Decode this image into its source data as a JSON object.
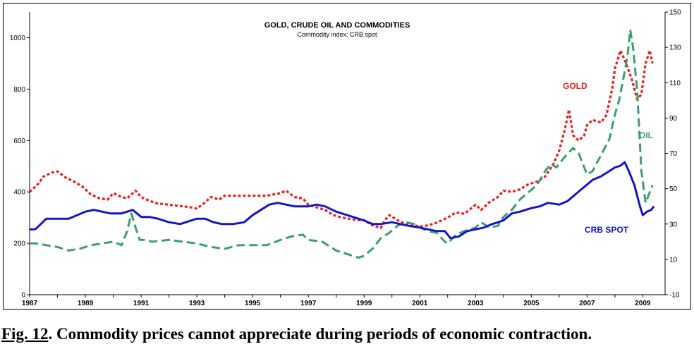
{
  "caption": {
    "label": "Fig. 12",
    "text": ". Commodity prices cannot appreciate during periods of economic contraction."
  },
  "chart_data": {
    "type": "line",
    "title": "GOLD, CRUDE OIL AND COMMODITIES",
    "subtitle": "Commodity index: CRB spot",
    "xlabel": "",
    "ylabel": "",
    "xlim": [
      1987,
      2009.8
    ],
    "ylim": [
      0,
      1100
    ],
    "y2lim": [
      -10,
      150
    ],
    "x_ticks": [
      1987,
      1989,
      1991,
      1993,
      1995,
      1997,
      1999,
      2001,
      2003,
      2005,
      2007,
      2009
    ],
    "y_ticks": [
      0,
      200,
      400,
      600,
      800,
      1000
    ],
    "y2_ticks": [
      -10,
      10,
      30,
      50,
      70,
      90,
      110,
      130,
      150
    ],
    "grid": false,
    "legend": "inline labels",
    "series": [
      {
        "name": "GOLD",
        "axis": "left",
        "color": "#e8201c",
        "style": "dotted",
        "x": [
          1987.0,
          1987.3,
          1987.5,
          1987.8,
          1988.0,
          1988.3,
          1988.6,
          1988.9,
          1989.2,
          1989.5,
          1989.8,
          1990.0,
          1990.3,
          1990.5,
          1990.8,
          1991.0,
          1991.3,
          1991.6,
          1992.0,
          1992.4,
          1992.8,
          1993.0,
          1993.3,
          1993.5,
          1993.8,
          1994.0,
          1994.5,
          1995.0,
          1995.5,
          1996.0,
          1996.2,
          1996.5,
          1996.8,
          1997.0,
          1997.3,
          1997.6,
          1997.9,
          1998.2,
          1998.5,
          1998.8,
          1999.0,
          1999.3,
          1999.6,
          1999.75,
          1999.9,
          2000.2,
          2000.5,
          2000.8,
          2001.0,
          2001.3,
          2001.6,
          2002.0,
          2002.3,
          2002.6,
          2003.0,
          2003.2,
          2003.5,
          2003.8,
          2004.0,
          2004.3,
          2004.6,
          2004.9,
          2005.2,
          2005.5,
          2005.8,
          2006.0,
          2006.2,
          2006.35,
          2006.5,
          2006.7,
          2006.9,
          2007.0,
          2007.2,
          2007.5,
          2007.7,
          2007.9,
          2008.0,
          2008.2,
          2008.4,
          2008.6,
          2008.8,
          2008.95,
          2009.1,
          2009.25,
          2009.35
        ],
        "values": [
          400,
          430,
          460,
          475,
          480,
          455,
          440,
          420,
          390,
          375,
          370,
          395,
          380,
          375,
          405,
          380,
          365,
          355,
          350,
          345,
          340,
          335,
          360,
          380,
          370,
          385,
          385,
          385,
          385,
          395,
          405,
          380,
          375,
          350,
          340,
          330,
          310,
          300,
          295,
          290,
          290,
          270,
          260,
          290,
          310,
          290,
          275,
          270,
          265,
          270,
          280,
          300,
          320,
          315,
          350,
          330,
          360,
          380,
          405,
          400,
          410,
          430,
          440,
          460,
          510,
          560,
          640,
          720,
          620,
          600,
          620,
          660,
          680,
          670,
          700,
          800,
          880,
          950,
          900,
          840,
          760,
          780,
          900,
          950,
          900
        ]
      },
      {
        "name": "OIL",
        "axis": "right",
        "color": "#3aa06a",
        "style": "dashed",
        "x": [
          1987.0,
          1987.3,
          1987.6,
          1988.0,
          1988.4,
          1988.8,
          1989.2,
          1989.6,
          1990.0,
          1990.3,
          1990.5,
          1990.65,
          1990.8,
          1990.95,
          1991.1,
          1991.4,
          1992.0,
          1992.5,
          1993.0,
          1993.5,
          1994.0,
          1994.5,
          1995.0,
          1995.5,
          1996.0,
          1996.4,
          1996.8,
          1997.0,
          1997.5,
          1998.0,
          1998.4,
          1998.8,
          1999.0,
          1999.3,
          1999.6,
          1999.9,
          2000.2,
          2000.5,
          2000.8,
          2001.0,
          2001.3,
          2001.6,
          2001.9,
          2002.0,
          2002.3,
          2002.6,
          2003.0,
          2003.2,
          2003.5,
          2003.8,
          2004.0,
          2004.3,
          2004.6,
          2004.9,
          2005.2,
          2005.5,
          2005.7,
          2005.9,
          2006.2,
          2006.5,
          2006.7,
          2006.9,
          2007.0,
          2007.2,
          2007.4,
          2007.6,
          2007.8,
          2007.9,
          2008.0,
          2008.15,
          2008.3,
          2008.45,
          2008.55,
          2008.65,
          2008.8,
          2008.95,
          2009.1,
          2009.25,
          2009.35
        ],
        "values": [
          19,
          19,
          18,
          17,
          15,
          16,
          18,
          19,
          20,
          18,
          26,
          36,
          28,
          21,
          21,
          20,
          21,
          20,
          19,
          17,
          16,
          18,
          18,
          18,
          21,
          23,
          24,
          21,
          20,
          15,
          13,
          11,
          12,
          16,
          22,
          25,
          29,
          31,
          30,
          28,
          26,
          25,
          20,
          19,
          24,
          26,
          28,
          31,
          28,
          29,
          34,
          38,
          44,
          48,
          52,
          60,
          64,
          62,
          68,
          73,
          70,
          62,
          58,
          60,
          66,
          72,
          78,
          85,
          92,
          100,
          112,
          125,
          140,
          130,
          105,
          60,
          42,
          48,
          52
        ]
      },
      {
        "name": "CRB SPOT",
        "axis": "right",
        "color": "#1515c8",
        "style": "solid",
        "x": [
          1987.0,
          1987.2,
          1987.4,
          1987.6,
          1988.0,
          1988.4,
          1988.7,
          1989.0,
          1989.3,
          1989.6,
          1989.9,
          1990.3,
          1990.7,
          1991.0,
          1991.3,
          1991.6,
          1992.0,
          1992.4,
          1992.8,
          1993.0,
          1993.3,
          1993.6,
          1993.9,
          1994.3,
          1994.7,
          1995.0,
          1995.3,
          1995.6,
          1995.9,
          1996.2,
          1996.5,
          1996.8,
          1997.0,
          1997.3,
          1997.6,
          1998.0,
          1998.4,
          1998.8,
          1999.0,
          1999.3,
          1999.6,
          2000.0,
          2000.3,
          2000.6,
          2001.0,
          2001.3,
          2001.6,
          2001.9,
          2002.1,
          2002.4,
          2002.7,
          2003.0,
          2003.3,
          2003.6,
          2004.0,
          2004.3,
          2004.6,
          2005.0,
          2005.3,
          2005.6,
          2006.0,
          2006.3,
          2006.6,
          2006.9,
          2007.2,
          2007.5,
          2007.8,
          2008.0,
          2008.2,
          2008.35,
          2008.5,
          2008.7,
          2008.9,
          2009.0,
          2009.15,
          2009.3,
          2009.4
        ],
        "values": [
          27,
          27,
          30,
          33,
          33,
          33,
          35,
          37,
          38,
          37,
          36,
          36,
          38,
          34,
          34,
          33,
          31,
          30,
          32,
          33,
          33,
          31,
          30,
          30,
          31,
          35,
          38,
          41,
          42,
          41,
          40,
          40,
          40,
          41,
          40,
          37,
          35,
          33,
          32,
          30,
          30,
          31,
          30,
          29,
          28,
          27,
          26,
          26,
          22,
          23,
          26,
          27,
          28,
          30,
          32,
          36,
          37,
          39,
          40,
          42,
          41,
          43,
          47,
          51,
          55,
          57,
          60,
          62,
          63,
          65,
          60,
          52,
          40,
          35,
          37,
          38,
          40
        ]
      }
    ],
    "annotations": [
      {
        "text": "GOLD",
        "color": "#e8201c"
      },
      {
        "text": "OIL",
        "color": "#3aa06a"
      },
      {
        "text": "CRB SPOT",
        "color": "#1515c8"
      }
    ]
  }
}
